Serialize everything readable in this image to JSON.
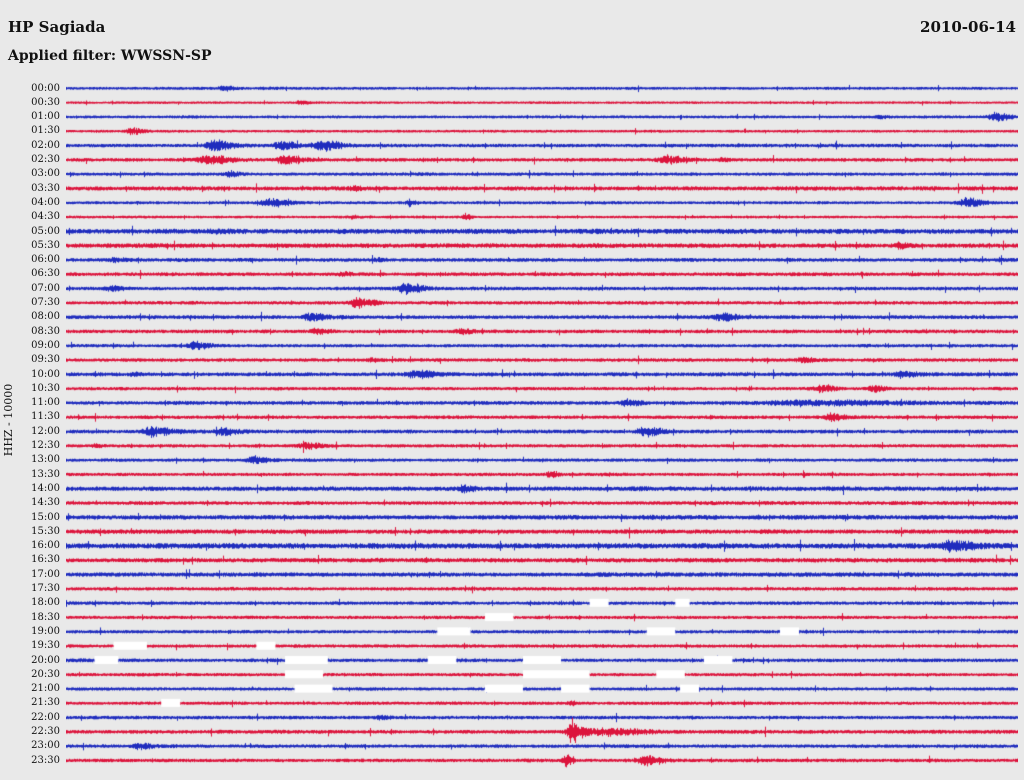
{
  "header": {
    "station": "HP Sagiada",
    "date": "2010-06-14",
    "filter": "Applied filter: WWSSN-SP"
  },
  "chart_data": {
    "type": "line",
    "subtype": "helicorder",
    "title": "HP Sagiada",
    "date": "2010-06-14",
    "filter": "WWSSN-SP",
    "ylabel": "HHZ - 10000",
    "xlabel": "",
    "row_interval_minutes": 30,
    "row_colors": [
      "#1f2cbe",
      "#dc143c"
    ],
    "gap_color": "#ffffff",
    "legend": "48 half-hour traces, 00:00 to 23:30, alternating blue/red; white segments are data gaps; events shown as amplitude bursts",
    "rows": [
      {
        "t": "00:00",
        "a": 1.1,
        "e": [
          [
            0.165,
            7,
            2.0
          ]
        ]
      },
      {
        "t": "00:30",
        "a": 0.9,
        "e": [
          [
            0.245,
            6,
            1.5
          ]
        ]
      },
      {
        "t": "01:00",
        "a": 1.1,
        "e": [
          [
            0.855,
            6,
            1.5
          ],
          [
            0.975,
            10,
            4.0
          ]
        ]
      },
      {
        "t": "01:30",
        "a": 1.0,
        "e": [
          [
            0.068,
            9,
            3.0
          ]
        ]
      },
      {
        "t": "02:00",
        "a": 1.4,
        "e": [
          [
            0.155,
            13,
            5.0
          ],
          [
            0.225,
            10,
            4.5
          ],
          [
            0.268,
            13,
            5.5
          ]
        ]
      },
      {
        "t": "02:30",
        "a": 1.4,
        "e": [
          [
            0.148,
            16,
            4.5
          ],
          [
            0.23,
            12,
            4.5
          ],
          [
            0.63,
            12,
            4.0
          ],
          [
            0.688,
            5,
            2.0
          ]
        ]
      },
      {
        "t": "03:00",
        "a": 1.3,
        "e": [
          [
            0.172,
            7,
            2.5
          ]
        ]
      },
      {
        "t": "03:30",
        "a": 1.7,
        "e": [
          [
            0.3,
            8,
            1.8
          ]
        ]
      },
      {
        "t": "04:00",
        "a": 1.2,
        "e": [
          [
            0.213,
            12,
            4.5
          ],
          [
            0.36,
            6,
            1.8
          ],
          [
            0.945,
            12,
            4.5
          ]
        ]
      },
      {
        "t": "04:30",
        "a": 1.0,
        "e": [
          [
            0.3,
            5,
            1.5
          ],
          [
            0.419,
            4,
            3.0
          ]
        ]
      },
      {
        "t": "05:00",
        "a": 2.1,
        "e": [
          [
            0.155,
            10,
            2.0
          ]
        ]
      },
      {
        "t": "05:30",
        "a": 1.9,
        "e": [
          [
            0.875,
            7,
            2.0
          ]
        ]
      },
      {
        "t": "06:00",
        "a": 1.5,
        "e": [
          [
            0.05,
            8,
            1.6
          ],
          [
            0.325,
            7,
            1.6
          ]
        ]
      },
      {
        "t": "06:30",
        "a": 1.5,
        "e": [
          [
            0.29,
            7,
            1.8
          ]
        ]
      },
      {
        "t": "07:00",
        "a": 1.4,
        "e": [
          [
            0.047,
            9,
            2.4
          ],
          [
            0.356,
            12,
            4.8
          ]
        ]
      },
      {
        "t": "07:30",
        "a": 1.4,
        "e": [
          [
            0.306,
            10,
            5.0
          ]
        ]
      },
      {
        "t": "08:00",
        "a": 1.5,
        "e": [
          [
            0.256,
            10,
            4.2
          ],
          [
            0.688,
            12,
            3.4
          ]
        ]
      },
      {
        "t": "08:30",
        "a": 1.4,
        "e": [
          [
            0.262,
            9,
            3.2
          ],
          [
            0.414,
            8,
            3.0
          ]
        ]
      },
      {
        "t": "09:00",
        "a": 1.3,
        "e": [
          [
            0.135,
            10,
            3.8
          ]
        ]
      },
      {
        "t": "09:30",
        "a": 1.4,
        "e": [
          [
            0.32,
            7,
            1.8
          ],
          [
            0.772,
            7,
            2.4
          ]
        ]
      },
      {
        "t": "10:00",
        "a": 1.6,
        "e": [
          [
            0.07,
            6,
            1.6
          ],
          [
            0.367,
            13,
            3.4
          ],
          [
            0.877,
            9,
            3.4
          ]
        ]
      },
      {
        "t": "10:30",
        "a": 1.3,
        "e": [
          [
            0.793,
            9,
            3.8
          ],
          [
            0.848,
            7,
            3.2
          ]
        ]
      },
      {
        "t": "11:00",
        "a": 1.5,
        "e": [
          [
            0.588,
            9,
            3.0
          ],
          [
            0.78,
            70,
            2.2
          ]
        ]
      },
      {
        "t": "11:30",
        "a": 1.4,
        "e": [
          [
            0.803,
            9,
            3.4
          ]
        ]
      },
      {
        "t": "12:00",
        "a": 1.5,
        "e": [
          [
            0.09,
            13,
            4.8
          ],
          [
            0.165,
            9,
            4.2
          ],
          [
            0.607,
            11,
            4.6
          ]
        ]
      },
      {
        "t": "12:30",
        "a": 1.3,
        "e": [
          [
            0.03,
            5,
            1.5
          ],
          [
            0.252,
            10,
            3.2
          ]
        ]
      },
      {
        "t": "13:00",
        "a": 1.3,
        "e": [
          [
            0.196,
            9,
            4.2
          ]
        ]
      },
      {
        "t": "13:30",
        "a": 1.3,
        "e": [
          [
            0.508,
            5,
            3.2
          ]
        ]
      },
      {
        "t": "14:00",
        "a": 1.8,
        "e": [
          [
            0.417,
            7,
            3.2
          ]
        ]
      },
      {
        "t": "14:30",
        "a": 1.5,
        "e": []
      },
      {
        "t": "15:00",
        "a": 1.9,
        "e": []
      },
      {
        "t": "15:30",
        "a": 1.8,
        "e": []
      },
      {
        "t": "16:00",
        "a": 2.3,
        "e": [
          [
            0.93,
            16,
            5.0
          ]
        ]
      },
      {
        "t": "16:30",
        "a": 1.8,
        "e": []
      },
      {
        "t": "17:00",
        "a": 1.8,
        "e": []
      },
      {
        "t": "17:30",
        "a": 1.4,
        "e": []
      },
      {
        "t": "18:00",
        "a": 1.4,
        "e": [],
        "g": [
          [
            0.55,
            0.02
          ],
          [
            0.64,
            0.015
          ]
        ]
      },
      {
        "t": "18:30",
        "a": 1.3,
        "e": [],
        "g": [
          [
            0.44,
            0.03
          ]
        ]
      },
      {
        "t": "19:00",
        "a": 1.3,
        "e": [],
        "g": [
          [
            0.39,
            0.035
          ],
          [
            0.61,
            0.03
          ],
          [
            0.75,
            0.02
          ]
        ]
      },
      {
        "t": "19:30",
        "a": 1.3,
        "e": [],
        "g": [
          [
            0.05,
            0.035
          ],
          [
            0.2,
            0.02
          ]
        ]
      },
      {
        "t": "20:00",
        "a": 1.4,
        "e": [],
        "g": [
          [
            0.03,
            0.025
          ],
          [
            0.23,
            0.045
          ],
          [
            0.38,
            0.03
          ],
          [
            0.48,
            0.04
          ],
          [
            0.67,
            0.03
          ]
        ]
      },
      {
        "t": "20:30",
        "a": 1.3,
        "e": [],
        "g": [
          [
            0.23,
            0.04
          ],
          [
            0.48,
            0.07
          ],
          [
            0.62,
            0.03
          ]
        ]
      },
      {
        "t": "21:00",
        "a": 1.3,
        "e": [],
        "g": [
          [
            0.24,
            0.04
          ],
          [
            0.44,
            0.04
          ],
          [
            0.52,
            0.03
          ],
          [
            0.645,
            0.02
          ]
        ]
      },
      {
        "t": "21:30",
        "a": 1.3,
        "e": [
          [
            0.53,
            4,
            2.6
          ]
        ],
        "g": [
          [
            0.1,
            0.02
          ]
        ]
      },
      {
        "t": "22:00",
        "a": 1.4,
        "e": [
          [
            0.33,
            6,
            1.8
          ]
        ]
      },
      {
        "t": "22:30",
        "a": 1.5,
        "e": [
          [
            0.531,
            7,
            13.5
          ],
          [
            0.565,
            26,
            3.5
          ]
        ]
      },
      {
        "t": "23:00",
        "a": 1.4,
        "e": [
          [
            0.075,
            9,
            3.0
          ]
        ]
      },
      {
        "t": "23:30",
        "a": 1.4,
        "e": [
          [
            0.524,
            4,
            7.5
          ],
          [
            0.608,
            12,
            4.5
          ]
        ]
      }
    ]
  }
}
